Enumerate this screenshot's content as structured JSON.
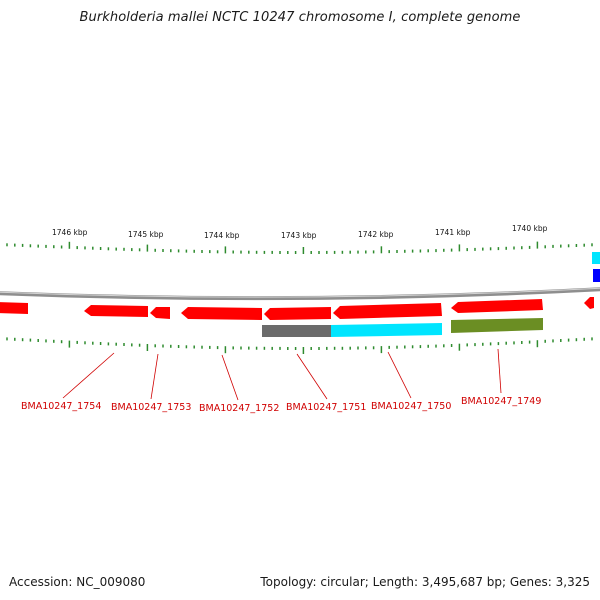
{
  "title": "Burkholderia mallei NCTC 10247 chromosome I, complete genome",
  "footer": {
    "accession": "Accession: NC_009080",
    "summary": "Topology: circular; Length: 3,495,687 bp; Genes: 3,325"
  },
  "scale_labels": [
    "1746 kbp",
    "1745 kbp",
    "1744 kbp",
    "1743 kbp",
    "1742 kbp",
    "1741 kbp",
    "1740 kbp"
  ],
  "gene_labels": [
    "BMA10247_1754",
    "BMA10247_1753",
    "BMA10247_1752",
    "BMA10247_1751",
    "BMA10247_1750",
    "BMA10247_1749"
  ],
  "colors": {
    "backbone": "#8e8e8e",
    "tick": "#2e8b2e",
    "forward_gene": "#ff0000",
    "gray_feature": "#6b6b6b",
    "cyan_feature": "#00e5ff",
    "olive_feature": "#6b8e23",
    "blue_feature": "#0000ff",
    "label_red": "#d00000"
  }
}
